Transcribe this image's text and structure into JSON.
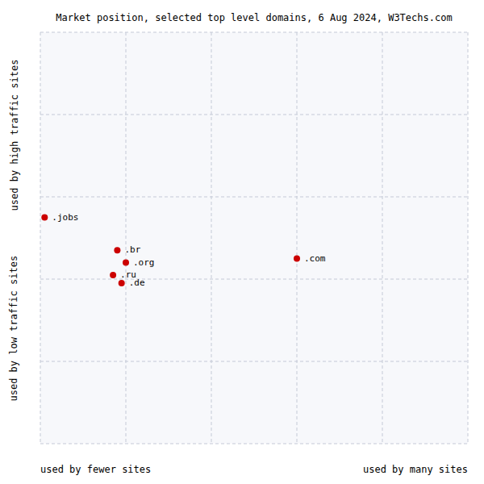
{
  "chart_data": {
    "type": "scatter",
    "title": "Market position, selected top level domains, 6 Aug 2024, W3Techs.com",
    "xlabel_left": "used by fewer sites",
    "xlabel_right": "used by many sites",
    "ylabel_top": "used by high traffic sites",
    "ylabel_bottom": "used by low traffic sites",
    "labels": [
      ".jobs",
      ".br",
      ".org",
      ".ru",
      ".de",
      ".com"
    ],
    "x": [
      1,
      18,
      20,
      17,
      19,
      60
    ],
    "values": [
      55,
      47,
      44,
      41,
      39,
      45
    ],
    "color": "#cc0000",
    "xlim": [
      0,
      100
    ],
    "ylim": [
      0,
      100
    ],
    "xticks": [
      0,
      20,
      40,
      60,
      80,
      100
    ],
    "yticks": [
      0,
      20,
      40,
      60,
      80,
      100
    ],
    "grid": true,
    "tick_labels": false
  }
}
